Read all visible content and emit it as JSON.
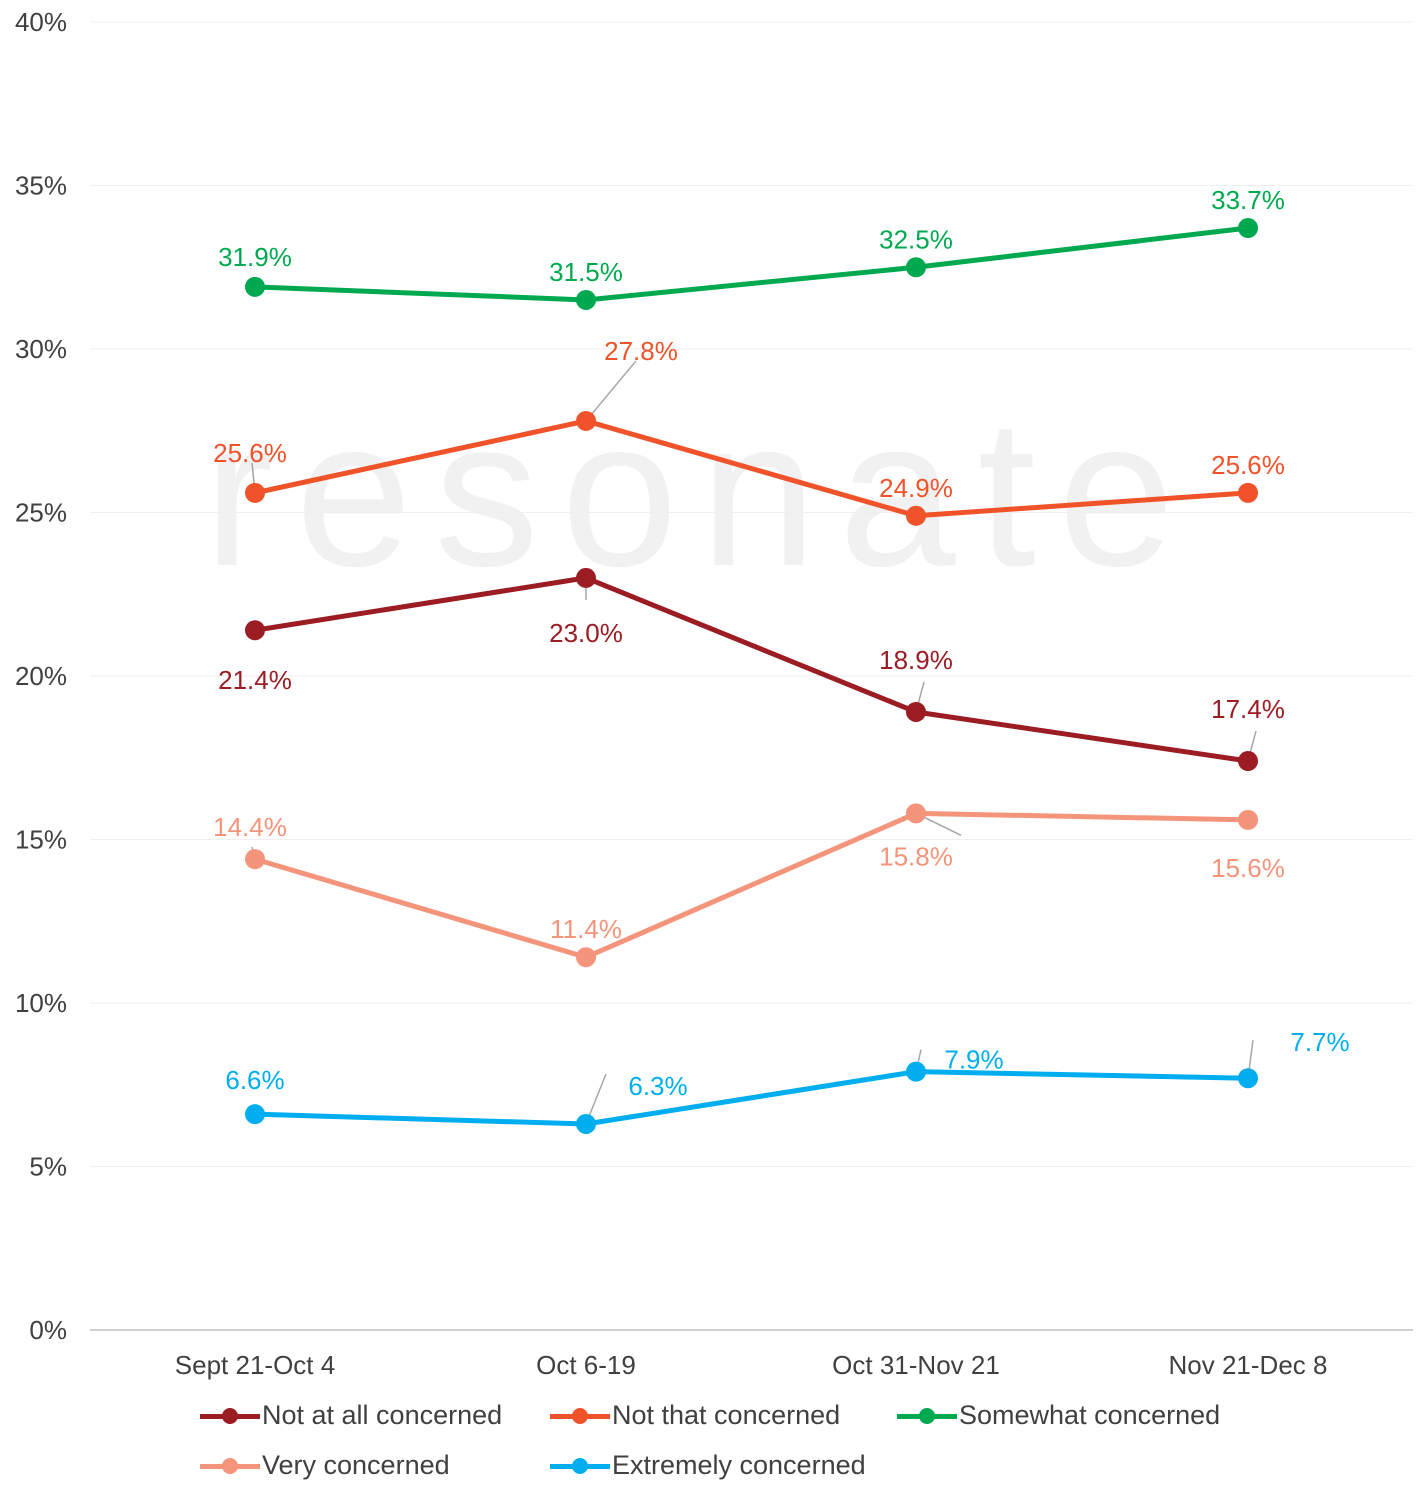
{
  "chart_data": {
    "type": "line",
    "categories": [
      "Sept 21-Oct 4",
      "Oct 6-19",
      "Oct 31-Nov 21",
      "Nov 21-Dec 8"
    ],
    "ylim": [
      0,
      40
    ],
    "yticks": [
      0,
      5,
      10,
      15,
      20,
      25,
      30,
      35,
      40
    ],
    "ytick_labels": [
      "0%",
      "5%",
      "10%",
      "15%",
      "20%",
      "25%",
      "30%",
      "35%",
      "40%"
    ],
    "grid": true,
    "legend_position": "bottom",
    "watermark": "resonate",
    "series": [
      {
        "name": "Not at all concerned",
        "color": "#9b1c23",
        "values": [
          21.4,
          23.0,
          18.9,
          17.4
        ],
        "labels": [
          "21.4%",
          "23.0%",
          "18.9%",
          "17.4%"
        ]
      },
      {
        "name": "Not that concerned",
        "color": "#f0532a",
        "values": [
          25.6,
          27.8,
          24.9,
          25.6
        ],
        "labels": [
          "25.6%",
          "27.8%",
          "24.9%",
          "25.6%"
        ]
      },
      {
        "name": "Somewhat concerned",
        "color": "#00a94f",
        "values": [
          31.9,
          31.5,
          32.5,
          33.7
        ],
        "labels": [
          "31.9%",
          "31.5%",
          "32.5%",
          "33.7%"
        ]
      },
      {
        "name": "Very concerned",
        "color": "#f4947a",
        "values": [
          14.4,
          11.4,
          15.8,
          15.6
        ],
        "labels": [
          "14.4%",
          "11.4%",
          "15.8%",
          "15.6%"
        ]
      },
      {
        "name": "Extremely concerned",
        "color": "#00aeef",
        "values": [
          6.6,
          6.3,
          7.9,
          7.7
        ],
        "labels": [
          "6.6%",
          "6.3%",
          "7.9%",
          "7.7%"
        ]
      }
    ]
  }
}
